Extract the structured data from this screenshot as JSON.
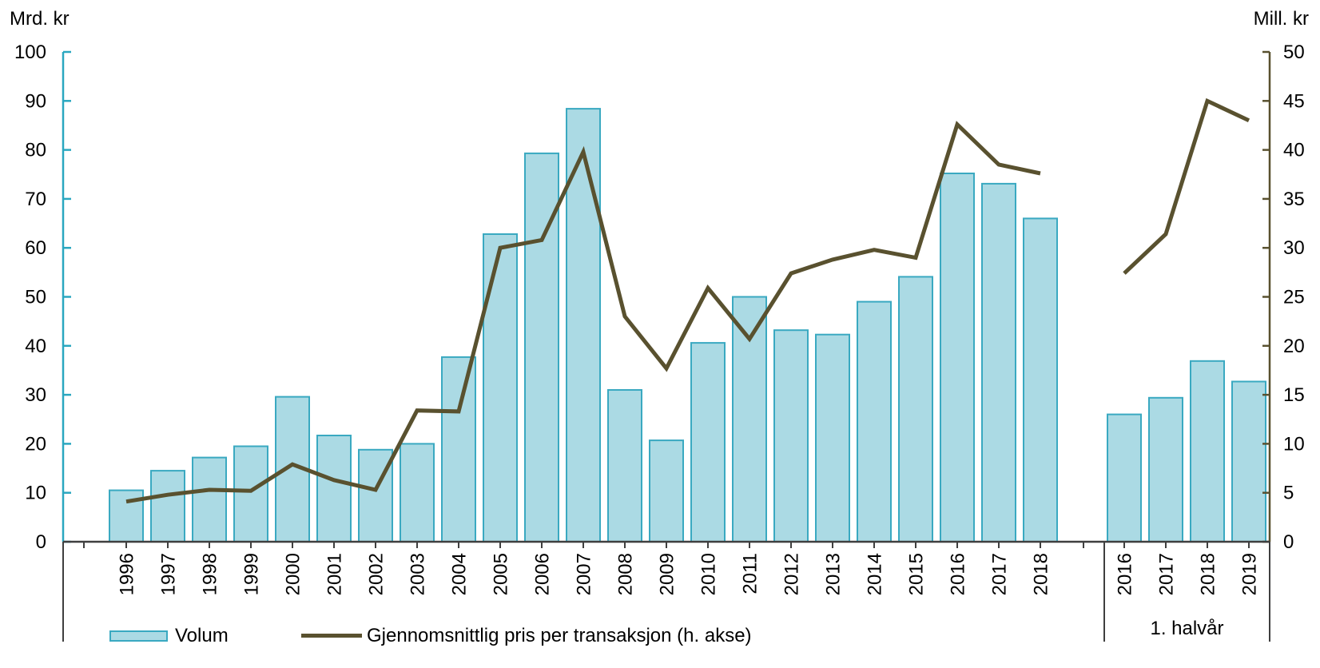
{
  "chart_data": {
    "type": "bar+line",
    "title": "",
    "left_axis": {
      "label": "Mrd. kr",
      "min": 0,
      "max": 100,
      "step": 10
    },
    "right_axis": {
      "label": "Mill. kr",
      "min": 0,
      "max": 50,
      "step": 5
    },
    "annual": {
      "categories": [
        "1996",
        "1997",
        "1998",
        "1999",
        "2000",
        "2001",
        "2002",
        "2003",
        "2004",
        "2005",
        "2006",
        "2007",
        "2008",
        "2009",
        "2010",
        "2011",
        "2012",
        "2013",
        "2014",
        "2015",
        "2016",
        "2017",
        "2018"
      ],
      "volume": [
        10.5,
        14.5,
        17.2,
        19.5,
        29.6,
        21.7,
        18.8,
        20,
        37.7,
        62.8,
        79.3,
        88.4,
        31,
        20.7,
        40.6,
        50,
        43.2,
        42.3,
        49,
        54.1,
        75.2,
        73.1,
        66
      ],
      "price": [
        4.1,
        4.8,
        5.3,
        5.2,
        7.9,
        6.3,
        5.3,
        13.4,
        13.3,
        30,
        30.8,
        39.8,
        23,
        17.7,
        25.9,
        20.7,
        27.4,
        28.8,
        29.8,
        29,
        42.6,
        38.5,
        37.6
      ]
    },
    "half_year": {
      "label": "1. halvår",
      "categories": [
        "2016",
        "2017",
        "2018",
        "2019"
      ],
      "volume": [
        26,
        29.4,
        36.9,
        32.7
      ],
      "price": [
        27.4,
        31.4,
        45,
        43
      ]
    },
    "legend": [
      {
        "label": "Volum",
        "type": "bar"
      },
      {
        "label": "Gjennomsnittlig pris per transaksjon (h. akse)",
        "type": "line"
      }
    ],
    "colors": {
      "bar_fill": "#abdae4",
      "bar_border": "#3aa9c1",
      "line": "#59512f",
      "left_axis": "#2aa7c0",
      "right_axis": "#59512f",
      "frame": "#3f3f3f",
      "text": "#000000"
    },
    "layout_hints": {
      "grid": "off",
      "legend_position": "bottom",
      "bar_series_axis": "left",
      "line_series_axis": "right",
      "x_labels_rotated": true,
      "sections": [
        "annual 1996-2018",
        "first half-year 2016-2019"
      ]
    }
  }
}
